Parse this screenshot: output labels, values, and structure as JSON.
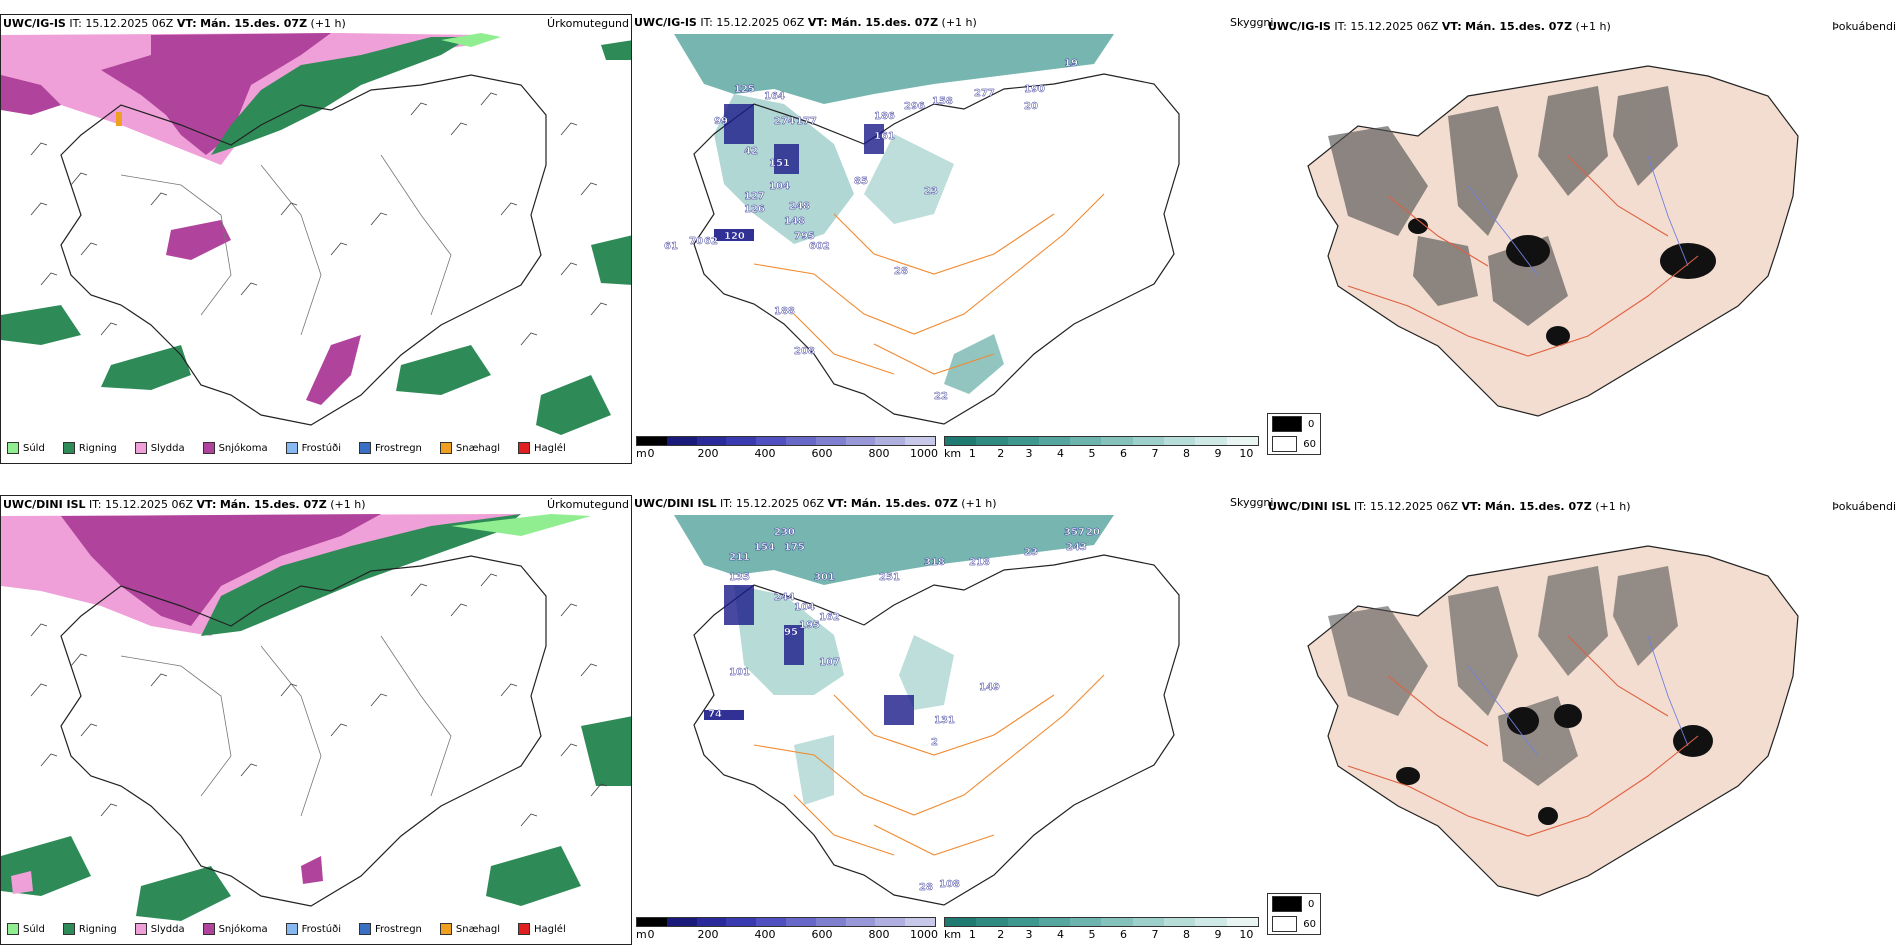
{
  "panels": [
    {
      "model": "UWC/IG-IS",
      "it_label": "IT:",
      "it_value": "15.12.2025 06Z",
      "vt_label": "VT:",
      "vt_value": "Mán. 15.des. 07Z",
      "offset": "(+1 h)",
      "precip_title": "Úrkomutegund",
      "fog_title": "Þokuábendi"
    },
    {
      "model": "UWC/DINI ISL",
      "it_label": "IT:",
      "it_value": "15.12.2025 06Z",
      "vt_label": "VT:",
      "vt_value": "Mán. 15.des. 07Z",
      "offset": "(+1 h)",
      "precip_title": "Úrkomutegund",
      "fog_title": "Þokuábendi"
    }
  ],
  "precip_legend": [
    {
      "label": "Súld",
      "color": "#90ee90"
    },
    {
      "label": "Rigning",
      "color": "#2e8b57"
    },
    {
      "label": "Slydda",
      "color": "#f0a0d8"
    },
    {
      "label": "Snjókoma",
      "color": "#b0449c"
    },
    {
      "label": "Frostúði",
      "color": "#87b8f0"
    },
    {
      "label": "Frostregn",
      "color": "#3a6fc4"
    },
    {
      "label": "Snæhagl",
      "color": "#f0a020"
    },
    {
      "label": "Haglél",
      "color": "#e02020"
    }
  ],
  "height_bar": {
    "unit": "m",
    "ticks": [
      "0",
      "200",
      "400",
      "600",
      "800",
      "1000"
    ],
    "colors": [
      "#000000",
      "#1a1a7a",
      "#2a2a9a",
      "#3a3ab0",
      "#5050c0",
      "#6868c8",
      "#8080d0",
      "#9898d8",
      "#b0b0e0",
      "#c8c8ea"
    ]
  },
  "km_bar": {
    "unit": "km",
    "ticks": [
      "1",
      "2",
      "3",
      "4",
      "5",
      "6",
      "7",
      "8",
      "9",
      "10"
    ],
    "colors": [
      "#1f7a72",
      "#2f8a82",
      "#3f9890",
      "#55a69e",
      "#6cb4ad",
      "#84c2bb",
      "#9dd0ca",
      "#b6ddd8",
      "#cfe9e6",
      "#e8f5f3"
    ]
  },
  "visibility_legend": {
    "title": "Skyggni",
    "items": [
      {
        "value": "0",
        "color": "#000000"
      },
      {
        "value": "60",
        "color": "#ffffff"
      }
    ]
  },
  "cloud_base_labels_top": [
    "19",
    "125",
    "164",
    "99",
    "274",
    "177",
    "186",
    "296",
    "158",
    "277",
    "190",
    "20",
    "161",
    "42",
    "151",
    "104",
    "85",
    "127",
    "248",
    "126",
    "23",
    "148",
    "120",
    "795",
    "602",
    "61",
    "70",
    "62",
    "28",
    "208",
    "188",
    "22"
  ],
  "cloud_base_labels_bottom": [
    "230",
    "154",
    "175",
    "211",
    "357",
    "20",
    "243",
    "318",
    "218",
    "23",
    "135",
    "244",
    "251",
    "301",
    "162",
    "195",
    "104",
    "95",
    "107",
    "101",
    "149",
    "131",
    "2",
    "108",
    "28",
    "74"
  ]
}
